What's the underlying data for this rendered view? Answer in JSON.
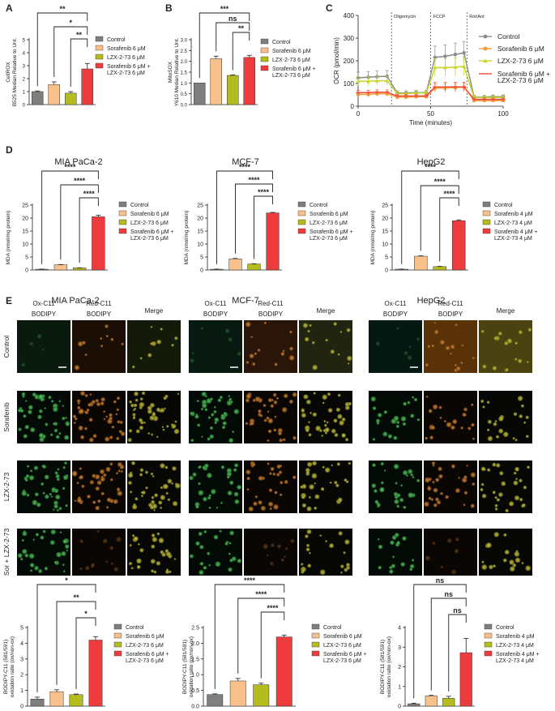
{
  "colors": {
    "control": "#7f7f7f",
    "sorafenib": "#f8c08a",
    "lzx": "#b5bd1e",
    "combo": "#ee3b3b",
    "ocr_control": "#8c8c8c",
    "ocr_sorafenib": "#f59a3e",
    "ocr_lzx": "#c7d62a",
    "ocr_combo": "#ee4a3b"
  },
  "panel_labels": {
    "A": "A",
    "B": "B",
    "C": "C",
    "D": "D",
    "E": "E"
  },
  "legend_sets": {
    "six": [
      "Control",
      "Sorafenib 6 μM",
      "LZX-2-73 6 μM",
      "Sorafenib 6 μM +",
      "LZX-2-73 6 μM"
    ],
    "four": [
      "Control",
      "Sorafenib 4 μM",
      "LZX-2-73 4 μM",
      "Sorafenib 4 μM +",
      "LZX-2-73 4 μM"
    ]
  },
  "cell_lines": [
    "MIA PaCa-2",
    "MCF-7",
    "HepG2"
  ],
  "image_panel": {
    "row_labels": [
      "Control",
      "Sorafenib",
      "LZX-2-73",
      "Sor + LZX-2-73"
    ],
    "column_labels": [
      [
        "Ox-C11",
        "BODIPY"
      ],
      [
        "Red-C11",
        "BODIPY"
      ],
      [
        "Merge",
        ""
      ]
    ]
  },
  "chart_data": [
    {
      "id": "A",
      "type": "bar",
      "categories": [
        "Control",
        "Sorafenib 6 μM",
        "LZX-2-73 6 μM",
        "Sorafenib 6 μM + LZX-2-73 6 μM"
      ],
      "values": [
        1.0,
        1.55,
        0.88,
        2.75
      ],
      "errors": [
        0.05,
        0.2,
        0.12,
        0.42
      ],
      "ylabel": [
        "CellROX",
        "B525 Median Relative to Unt."
      ],
      "ylim": [
        0,
        5
      ],
      "yticks": [
        "0",
        "1",
        "2",
        "3",
        "4",
        "5"
      ],
      "significance": [
        {
          "from": 0,
          "to": 3,
          "label": "**"
        },
        {
          "from": 1,
          "to": 3,
          "label": "*"
        },
        {
          "from": 2,
          "to": 3,
          "label": "**"
        }
      ]
    },
    {
      "id": "B",
      "type": "bar",
      "categories": [
        "Control",
        "Sorafenib 6 μM",
        "LZX-2-73 6 μM",
        "Sorafenib 6 μM + LZX-2-73 6 μM"
      ],
      "values": [
        1.0,
        2.12,
        1.35,
        2.18
      ],
      "errors": [
        0.0,
        0.12,
        0.02,
        0.1
      ],
      "ylabel": [
        "MitoSOX",
        "Y610 Median Relative to Unt."
      ],
      "ylim": [
        0,
        3
      ],
      "yticks": [
        "0.0",
        "0.5",
        "1.0",
        "1.5",
        "2.0",
        "2.5",
        "3.0"
      ],
      "significance": [
        {
          "from": 0,
          "to": 3,
          "label": "***"
        },
        {
          "from": 1,
          "to": 3,
          "label": "ns"
        },
        {
          "from": 2,
          "to": 3,
          "label": "**"
        }
      ]
    },
    {
      "id": "C",
      "type": "line",
      "xlabel": "Time (minutes)",
      "ylabel": "OCR (pmol/min)",
      "xlim": [
        0,
        100
      ],
      "ylim": [
        0,
        400
      ],
      "xticks": [
        "0",
        "50",
        "100"
      ],
      "yticks": [
        "0",
        "100",
        "200",
        "300",
        "400"
      ],
      "annotations": [
        {
          "label": "Oligomycin",
          "x": 23
        },
        {
          "label": "FCCP",
          "x": 50
        },
        {
          "label": "Rot/Ant",
          "x": 75
        }
      ],
      "x": [
        0,
        7,
        13,
        20,
        27,
        33,
        40,
        47,
        53,
        60,
        67,
        73,
        80,
        87,
        93,
        100
      ],
      "series": [
        {
          "name": "Control",
          "values": [
            125,
            128,
            130,
            132,
            58,
            58,
            60,
            60,
            215,
            220,
            228,
            235,
            40,
            40,
            42,
            42
          ],
          "errors": [
            25,
            25,
            25,
            25,
            10,
            10,
            10,
            10,
            50,
            50,
            50,
            50,
            8,
            8,
            8,
            8
          ]
        },
        {
          "name": "Sorafenib 6 μM",
          "values": [
            52,
            52,
            55,
            55,
            40,
            40,
            42,
            42,
            80,
            80,
            82,
            84,
            25,
            25,
            25,
            25
          ],
          "errors": [
            10,
            10,
            10,
            10,
            8,
            8,
            8,
            8,
            18,
            18,
            18,
            18,
            6,
            6,
            6,
            6
          ]
        },
        {
          "name": "LZX-2-73 6 μM",
          "values": [
            110,
            110,
            112,
            112,
            55,
            55,
            58,
            58,
            170,
            170,
            172,
            175,
            38,
            38,
            38,
            38
          ],
          "errors": [
            20,
            20,
            20,
            20,
            10,
            10,
            10,
            10,
            40,
            40,
            40,
            40,
            8,
            8,
            8,
            8
          ]
        },
        {
          "name": "Sorafenib 6 μM + LZX-2-73 6 μM",
          "values": [
            60,
            60,
            62,
            62,
            45,
            45,
            45,
            45,
            85,
            85,
            85,
            85,
            30,
            30,
            30,
            30
          ],
          "errors": [
            10,
            10,
            10,
            10,
            8,
            8,
            8,
            8,
            20,
            20,
            20,
            20,
            6,
            6,
            6,
            6
          ]
        }
      ]
    },
    {
      "id": "D1",
      "type": "bar",
      "title": "MIA PaCa-2",
      "categories": [
        "Control",
        "Sorafenib 6 μM",
        "LZX-2-73 6 μM",
        "Sorafenib 6 μM + LZX-2-73 6 μM"
      ],
      "values": [
        0.3,
        2.0,
        0.8,
        20.5
      ],
      "errors": [
        0.05,
        0.1,
        0.05,
        0.6
      ],
      "ylabel": [
        "MDA (nmol/mg protein)"
      ],
      "ylim": [
        0,
        25
      ],
      "yticks": [
        "0",
        "5",
        "10",
        "15",
        "20",
        "25"
      ],
      "significance": [
        {
          "from": 0,
          "to": 3,
          "label": "****"
        },
        {
          "from": 1,
          "to": 3,
          "label": "****"
        },
        {
          "from": 2,
          "to": 3,
          "label": "****"
        }
      ]
    },
    {
      "id": "D2",
      "type": "bar",
      "title": "MCF-7",
      "categories": [
        "Control",
        "Sorafenib 6 μM",
        "LZX-2-73 6 μM",
        "Sorafenib 6 μM + LZX-2-73 6 μM"
      ],
      "values": [
        0.3,
        4.3,
        2.3,
        22.0
      ],
      "errors": [
        0.05,
        0.15,
        0.1,
        0.2
      ],
      "ylabel": [
        "MDA (nmol/mg protein)"
      ],
      "ylim": [
        0,
        25
      ],
      "yticks": [
        "0",
        "5",
        "10",
        "15",
        "20",
        "25"
      ],
      "significance": [
        {
          "from": 0,
          "to": 3,
          "label": "****"
        },
        {
          "from": 1,
          "to": 3,
          "label": "****"
        },
        {
          "from": 2,
          "to": 3,
          "label": "****"
        }
      ]
    },
    {
      "id": "D3",
      "type": "bar",
      "title": "HepG2",
      "categories": [
        "Control",
        "Sorafenib 4 μM",
        "LZX-2-73 4 μM",
        "Sorafenib 4 μM + LZX-2-73 4 μM"
      ],
      "values": [
        0.3,
        5.3,
        1.3,
        19.0
      ],
      "errors": [
        0.05,
        0.15,
        0.1,
        0.3
      ],
      "ylabel": [
        "MDA (nmol/mg protein)"
      ],
      "ylim": [
        0,
        25
      ],
      "yticks": [
        "0",
        "5",
        "10",
        "15",
        "20",
        "25"
      ],
      "significance": [
        {
          "from": 0,
          "to": 3,
          "label": "****"
        },
        {
          "from": 1,
          "to": 3,
          "label": "****"
        },
        {
          "from": 2,
          "to": 3,
          "label": "****"
        }
      ]
    },
    {
      "id": "E1",
      "type": "bar",
      "categories": [
        "Control",
        "Sorafenib 6 μM",
        "LZX-2-73 6 μM",
        "Sorafenib 6 μM + LZX-2-73 6 μM"
      ],
      "values": [
        0.45,
        0.92,
        0.73,
        4.2
      ],
      "errors": [
        0.12,
        0.12,
        0.04,
        0.22
      ],
      "ylabel": [
        "BODIPY-C11 (581/591)",
        "oxidation ratio (ox/non-ox)"
      ],
      "ylim": [
        0,
        5
      ],
      "yticks": [
        "0",
        "1",
        "2",
        "3",
        "4",
        "5"
      ],
      "significance": [
        {
          "from": 0,
          "to": 3,
          "label": "*"
        },
        {
          "from": 1,
          "to": 3,
          "label": "**"
        },
        {
          "from": 2,
          "to": 3,
          "label": "*"
        }
      ]
    },
    {
      "id": "E2",
      "type": "bar",
      "categories": [
        "Control",
        "Sorafenib 6 μM",
        "LZX-2-73 6 μM",
        "Sorafenib 6 μM + LZX-2-73 6 μM"
      ],
      "values": [
        0.37,
        0.8,
        0.68,
        2.2
      ],
      "errors": [
        0.02,
        0.08,
        0.05,
        0.06
      ],
      "ylabel": [
        "BODIPY-C11 (581/591)",
        "oxidation ratio (ox/non-ox)"
      ],
      "ylim": [
        0,
        2.5
      ],
      "yticks": [
        "0.0",
        "0.5",
        "1.0",
        "1.5",
        "2.0",
        "2.5"
      ],
      "significance": [
        {
          "from": 0,
          "to": 3,
          "label": "****"
        },
        {
          "from": 1,
          "to": 3,
          "label": "****"
        },
        {
          "from": 2,
          "to": 3,
          "label": "****"
        }
      ]
    },
    {
      "id": "E3",
      "type": "bar",
      "categories": [
        "Control",
        "Sorafenib 4 μM",
        "LZX-2-73 4 μM",
        "Sorafenib 4 μM + LZX-2-73 4 μM"
      ],
      "values": [
        0.12,
        0.52,
        0.4,
        2.72
      ],
      "errors": [
        0.03,
        0.03,
        0.1,
        0.72
      ],
      "ylabel": [
        "BODIPY-C11 (581/591)",
        "oxidation ratio (ox/non-ox)"
      ],
      "ylim": [
        0,
        4
      ],
      "yticks": [
        "0",
        "1",
        "2",
        "3",
        "4"
      ],
      "significance": [
        {
          "from": 0,
          "to": 3,
          "label": "ns"
        },
        {
          "from": 1,
          "to": 3,
          "label": "ns"
        },
        {
          "from": 2,
          "to": 3,
          "label": "ns"
        }
      ]
    }
  ]
}
